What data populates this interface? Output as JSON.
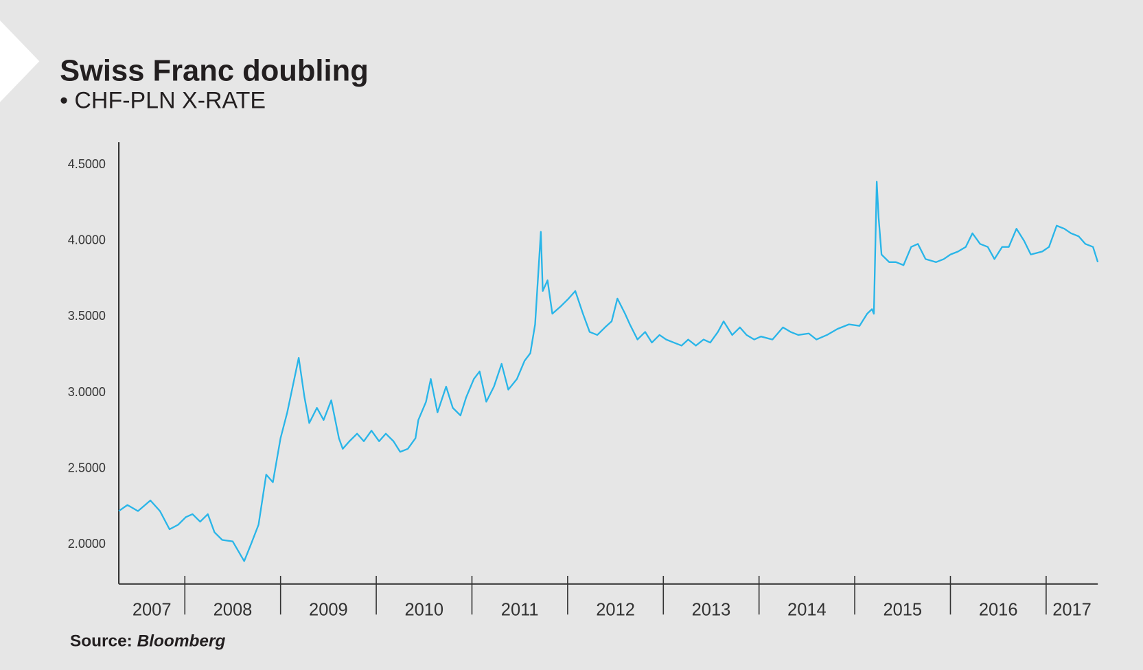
{
  "chart_data": {
    "type": "line",
    "title": "Swiss Franc doubling",
    "subtitle": "• CHF-PLN X-RATE",
    "source_label": "Source:",
    "source_name": "Bloomberg",
    "color": "#29b5e8",
    "xlim": [
      2007.31,
      2017.54
    ],
    "ylim": [
      1.74,
      4.65
    ],
    "xticks": [
      {
        "value": 2007,
        "label": "2007"
      },
      {
        "value": 2008,
        "label": "2008"
      },
      {
        "value": 2009,
        "label": "2009"
      },
      {
        "value": 2010,
        "label": "2010"
      },
      {
        "value": 2011,
        "label": "2011"
      },
      {
        "value": 2012,
        "label": "2012"
      },
      {
        "value": 2013,
        "label": "2013"
      },
      {
        "value": 2014,
        "label": "2014"
      },
      {
        "value": 2015,
        "label": "2015"
      },
      {
        "value": 2016,
        "label": "2016"
      },
      {
        "value": 2017,
        "label": "2017"
      }
    ],
    "yticks": [
      {
        "value": 2,
        "label": "2.0000"
      },
      {
        "value": 2.5,
        "label": "2.5000"
      },
      {
        "value": 3,
        "label": "3.0000"
      },
      {
        "value": 3.5,
        "label": "3.5000"
      },
      {
        "value": 4,
        "label": "4.0000"
      },
      {
        "value": 4.5,
        "label": "4.5000"
      }
    ],
    "x": [
      2007.31,
      2007.4,
      2007.51,
      2007.64,
      2007.74,
      2007.84,
      2007.93,
      2008.01,
      2008.08,
      2008.16,
      2008.24,
      2008.31,
      2008.39,
      2008.5,
      2008.62,
      2008.69,
      2008.77,
      2008.85,
      2008.92,
      2009.0,
      2009.07,
      2009.11,
      2009.19,
      2009.25,
      2009.3,
      2009.38,
      2009.45,
      2009.53,
      2009.61,
      2009.65,
      2009.72,
      2009.8,
      2009.87,
      2009.95,
      2010.03,
      2010.1,
      2010.18,
      2010.25,
      2010.33,
      2010.41,
      2010.44,
      2010.52,
      2010.57,
      2010.64,
      2010.73,
      2010.8,
      2010.88,
      2010.94,
      2011.02,
      2011.08,
      2011.15,
      2011.23,
      2011.31,
      2011.38,
      2011.47,
      2011.55,
      2011.61,
      2011.66,
      2011.72,
      2011.74,
      2011.79,
      2011.84,
      2011.93,
      2012.01,
      2012.08,
      2012.16,
      2012.23,
      2012.31,
      2012.39,
      2012.46,
      2012.52,
      2012.6,
      2012.65,
      2012.73,
      2012.81,
      2012.88,
      2012.96,
      2013.03,
      2013.11,
      2013.19,
      2013.26,
      2013.34,
      2013.42,
      2013.49,
      2013.57,
      2013.63,
      2013.72,
      2013.8,
      2013.87,
      2013.95,
      2014.02,
      2014.14,
      2014.25,
      2014.33,
      2014.41,
      2014.52,
      2014.6,
      2014.71,
      2014.82,
      2014.94,
      2015.05,
      2015.13,
      2015.18,
      2015.2,
      2015.23,
      2015.25,
      2015.28,
      2015.36,
      2015.43,
      2015.51,
      2015.59,
      2015.66,
      2015.74,
      2015.85,
      2015.93,
      2016.0,
      2016.08,
      2016.16,
      2016.23,
      2016.31,
      2016.39,
      2016.46,
      2016.54,
      2016.61,
      2016.69,
      2016.77,
      2016.84,
      2016.96,
      2017.03,
      2017.11,
      2017.19,
      2017.26,
      2017.34,
      2017.41,
      2017.49,
      2017.54
    ],
    "values": [
      2.22,
      2.26,
      2.22,
      2.29,
      2.22,
      2.1,
      2.13,
      2.18,
      2.2,
      2.15,
      2.2,
      2.08,
      2.03,
      2.02,
      1.89,
      2.0,
      2.13,
      2.46,
      2.41,
      2.7,
      2.87,
      2.99,
      3.23,
      2.97,
      2.8,
      2.9,
      2.82,
      2.95,
      2.7,
      2.63,
      2.68,
      2.73,
      2.68,
      2.75,
      2.68,
      2.73,
      2.68,
      2.61,
      2.63,
      2.7,
      2.82,
      2.94,
      3.09,
      2.87,
      3.04,
      2.9,
      2.85,
      2.97,
      3.09,
      3.14,
      2.94,
      3.04,
      3.19,
      3.02,
      3.09,
      3.21,
      3.26,
      3.45,
      4.06,
      3.67,
      3.74,
      3.52,
      3.57,
      3.62,
      3.67,
      3.52,
      3.4,
      3.38,
      3.43,
      3.47,
      3.62,
      3.52,
      3.45,
      3.35,
      3.4,
      3.33,
      3.38,
      3.35,
      3.33,
      3.31,
      3.35,
      3.31,
      3.35,
      3.33,
      3.4,
      3.47,
      3.38,
      3.43,
      3.38,
      3.35,
      3.37,
      3.35,
      3.43,
      3.4,
      3.38,
      3.39,
      3.35,
      3.38,
      3.42,
      3.45,
      3.44,
      3.52,
      3.55,
      3.52,
      4.39,
      4.15,
      3.91,
      3.86,
      3.86,
      3.84,
      3.96,
      3.98,
      3.88,
      3.86,
      3.88,
      3.91,
      3.93,
      3.96,
      4.05,
      3.98,
      3.96,
      3.88,
      3.96,
      3.96,
      4.08,
      4.0,
      3.91,
      3.93,
      3.96,
      4.1,
      4.08,
      4.05,
      4.03,
      3.98,
      3.96,
      3.86
    ]
  }
}
